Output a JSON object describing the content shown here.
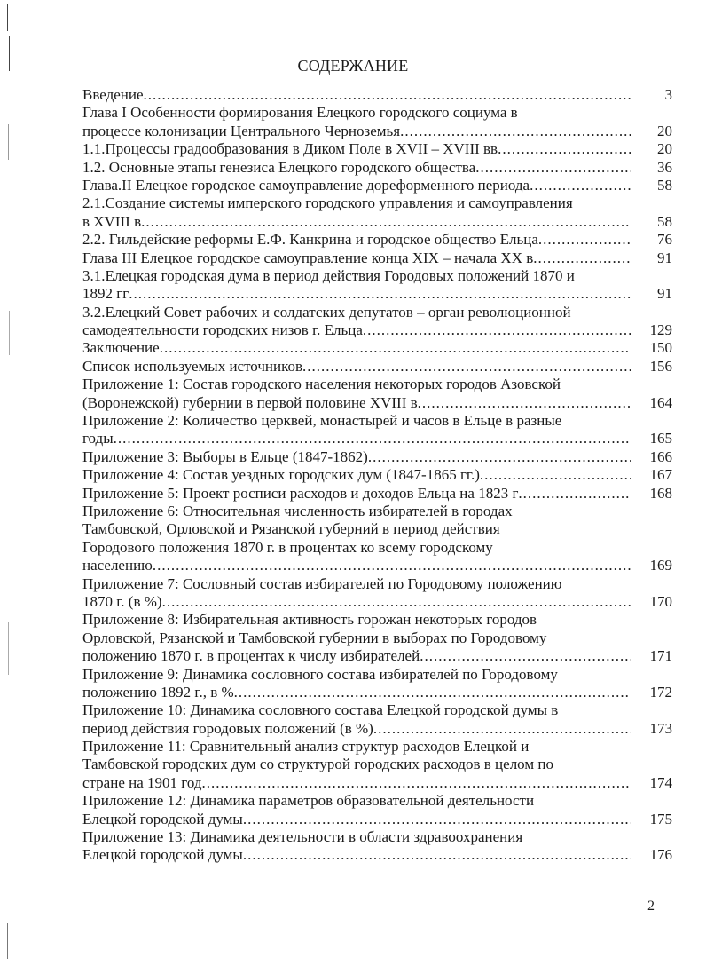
{
  "title": "СОДЕРЖАНИЕ",
  "entries": [
    {
      "lines": [
        "Введение"
      ],
      "page": "3"
    },
    {
      "lines": [
        "Глава I Особенности формирования Елецкого городского социума в",
        "процессе колонизации Центрального Черноземья"
      ],
      "page": "20"
    },
    {
      "lines": [
        "1.1.Процессы градообразования в Диком Поле в XVII – XVIII вв"
      ],
      "page": "20"
    },
    {
      "lines": [
        "1.2. Основные этапы генезиса Елецкого городского общества"
      ],
      "page": "36"
    },
    {
      "lines": [
        "Глава.II Елецкое городское самоуправление дореформенного периода"
      ],
      "page": "58"
    },
    {
      "lines": [
        "2.1.Создание системы имперского городского управления и самоуправления",
        "в XVIII в"
      ],
      "page": "58"
    },
    {
      "lines": [
        "2.2. Гильдейские реформы Е.Ф. Канкрина и городское общество Ельца"
      ],
      "page": "76"
    },
    {
      "lines": [
        "Глава III Елецкое городское самоуправление конца XIX – начала XX в"
      ],
      "page": "91"
    },
    {
      "lines": [
        "3.1.Елецкая городская дума в период действия Городовых положений 1870 и",
        "1892 гг"
      ],
      "page": "91"
    },
    {
      "lines": [
        "3.2.Елецкий Совет рабочих и солдатских депутатов – орган революционной",
        "самодеятельности городских низов г. Ельца"
      ],
      "page": "129"
    },
    {
      "lines": [
        "Заключение"
      ],
      "page": "150"
    },
    {
      "lines": [
        "Список используемых источников"
      ],
      "page": "156"
    },
    {
      "lines": [
        "Приложение 1: Состав городского населения некоторых городов Азовской",
        "(Воронежской) губернии в первой половине XVIII в"
      ],
      "page": "164"
    },
    {
      "lines": [
        "Приложение 2: Количество церквей, монастырей и часов в Ельце в разные",
        "годы"
      ],
      "page": "165"
    },
    {
      "lines": [
        "Приложение 3: Выборы в Ельце (1847-1862)"
      ],
      "page": "166"
    },
    {
      "lines": [
        "Приложение 4: Состав уездных городских дум (1847-1865 гг.)"
      ],
      "page": "167"
    },
    {
      "lines": [
        "Приложение 5: Проект росписи расходов и доходов Ельца на 1823 г"
      ],
      "page": "168"
    },
    {
      "lines": [
        "Приложение 6: Относительная численность избирателей в городах",
        "Тамбовской, Орловской и Рязанской губерний в период действия",
        "Городового положения 1870 г. в процентах ко всему городскому",
        "населению"
      ],
      "page": "169"
    },
    {
      "lines": [
        "Приложение 7: Сословный состав избирателей по Городовому положению",
        "1870 г. (в %)"
      ],
      "page": "170"
    },
    {
      "lines": [
        "Приложение 8: Избирательная активность горожан некоторых городов",
        "Орловской, Рязанской и Тамбовской губернии в выборах по Городовому",
        "положению 1870 г. в процентах к числу избирателей"
      ],
      "page": "171"
    },
    {
      "lines": [
        "Приложение 9: Динамика сословного состава избирателей по Городовому",
        "положению 1892 г., в %"
      ],
      "page": "172"
    },
    {
      "lines": [
        "Приложение 10: Динамика сословного состава Елецкой городской думы в",
        "период действия городовых положений (в %)"
      ],
      "page": "173"
    },
    {
      "lines": [
        "Приложение 11: Сравнительный анализ структур расходов Елецкой и",
        "Тамбовской городских дум со структурой городских расходов в целом по",
        "стране на 1901 год"
      ],
      "page": "174"
    },
    {
      "lines": [
        "Приложение 12: Динамика параметров образовательной деятельности",
        "Елецкой городской думы"
      ],
      "page": "175"
    },
    {
      "lines": [
        "Приложение 13: Динамика деятельности в области здравоохранения",
        "Елецкой городской думы"
      ],
      "page": "176"
    }
  ],
  "page_number": "2"
}
